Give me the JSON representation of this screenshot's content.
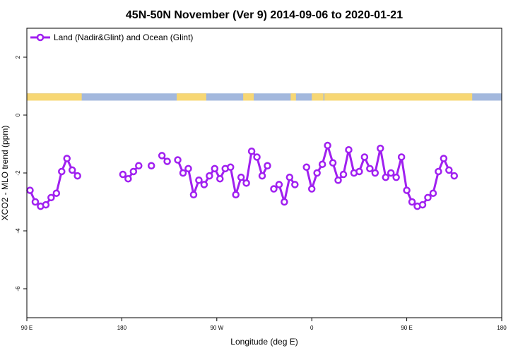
{
  "chart_data": {
    "type": "line",
    "title": "45N-50N November (Ver 9)   2014-09-06 to 2020-01-21",
    "xlabel": "Longitude (deg E)",
    "ylabel": "XCO2 - MLO trend (ppm)",
    "xlim": [
      90,
      540
    ],
    "ylim": [
      -7,
      3
    ],
    "x_ticks": [
      {
        "value": 90,
        "label": "90 E"
      },
      {
        "value": 180,
        "label": "180"
      },
      {
        "value": 270,
        "label": "90 W"
      },
      {
        "value": 360,
        "label": "0"
      },
      {
        "value": 450,
        "label": "90 E"
      },
      {
        "value": 540,
        "label": "180"
      }
    ],
    "y_ticks": [
      {
        "value": 2,
        "label": "2"
      },
      {
        "value": 0,
        "label": "0"
      },
      {
        "value": -2,
        "label": "-2"
      },
      {
        "value": -4,
        "label": "-4"
      },
      {
        "value": -6,
        "label": "-6"
      }
    ],
    "legend_position": "top-left",
    "land_ocean_strip": {
      "y_range": [
        0.5,
        0.75
      ],
      "land_color": "#f7d774",
      "ocean_color": "#a3b8dd",
      "land_segments": [
        [
          90,
          142
        ],
        [
          232,
          260
        ],
        [
          295,
          305
        ],
        [
          340,
          345
        ],
        [
          360,
          371
        ],
        [
          372,
          512
        ]
      ]
    },
    "series": [
      {
        "name": "Land (Nadir&Glint) and Ocean (Glint)",
        "color": "#a020f0",
        "segments": [
          [
            {
              "x": 93,
              "y": -2.6
            },
            {
              "x": 98,
              "y": -3.0
            },
            {
              "x": 103,
              "y": -3.15
            },
            {
              "x": 108,
              "y": -3.1
            },
            {
              "x": 113,
              "y": -2.85
            },
            {
              "x": 118,
              "y": -2.7
            },
            {
              "x": 123,
              "y": -1.95
            },
            {
              "x": 128,
              "y": -1.5
            },
            {
              "x": 133,
              "y": -1.9
            },
            {
              "x": 138,
              "y": -2.1
            }
          ],
          [
            {
              "x": 181,
              "y": -2.05
            },
            {
              "x": 186,
              "y": -2.2
            },
            {
              "x": 191,
              "y": -1.95
            },
            {
              "x": 196,
              "y": -1.75
            }
          ],
          [
            {
              "x": 208,
              "y": -1.75
            }
          ],
          [
            {
              "x": 218,
              "y": -1.4
            },
            {
              "x": 223,
              "y": -1.6
            }
          ],
          [
            {
              "x": 233,
              "y": -1.55
            },
            {
              "x": 238,
              "y": -2.0
            },
            {
              "x": 243,
              "y": -1.85
            },
            {
              "x": 248,
              "y": -2.75
            },
            {
              "x": 253,
              "y": -2.25
            },
            {
              "x": 258,
              "y": -2.4
            },
            {
              "x": 263,
              "y": -2.1
            },
            {
              "x": 268,
              "y": -1.85
            },
            {
              "x": 273,
              "y": -2.2
            },
            {
              "x": 278,
              "y": -1.85
            },
            {
              "x": 283,
              "y": -1.8
            },
            {
              "x": 288,
              "y": -2.75
            },
            {
              "x": 293,
              "y": -2.15
            },
            {
              "x": 298,
              "y": -2.35
            },
            {
              "x": 303,
              "y": -1.25
            },
            {
              "x": 308,
              "y": -1.45
            },
            {
              "x": 313,
              "y": -2.1
            },
            {
              "x": 318,
              "y": -1.75
            }
          ],
          [
            {
              "x": 324,
              "y": -2.55
            },
            {
              "x": 329,
              "y": -2.4
            },
            {
              "x": 334,
              "y": -3.0
            },
            {
              "x": 339,
              "y": -2.15
            },
            {
              "x": 344,
              "y": -2.4
            }
          ],
          [
            {
              "x": 355,
              "y": -1.8
            },
            {
              "x": 360,
              "y": -2.55
            },
            {
              "x": 365,
              "y": -2.0
            },
            {
              "x": 370,
              "y": -1.7
            },
            {
              "x": 375,
              "y": -1.05
            },
            {
              "x": 380,
              "y": -1.65
            },
            {
              "x": 385,
              "y": -2.25
            },
            {
              "x": 390,
              "y": -2.05
            },
            {
              "x": 395,
              "y": -1.2
            },
            {
              "x": 400,
              "y": -2.0
            },
            {
              "x": 405,
              "y": -1.95
            },
            {
              "x": 410,
              "y": -1.45
            },
            {
              "x": 415,
              "y": -1.85
            },
            {
              "x": 420,
              "y": -2.0
            },
            {
              "x": 425,
              "y": -1.15
            },
            {
              "x": 430,
              "y": -2.15
            },
            {
              "x": 435,
              "y": -2.0
            },
            {
              "x": 440,
              "y": -2.15
            },
            {
              "x": 445,
              "y": -1.45
            },
            {
              "x": 450,
              "y": -2.6
            },
            {
              "x": 455,
              "y": -3.0
            },
            {
              "x": 460,
              "y": -3.15
            },
            {
              "x": 465,
              "y": -3.1
            },
            {
              "x": 470,
              "y": -2.85
            },
            {
              "x": 475,
              "y": -2.7
            },
            {
              "x": 480,
              "y": -1.95
            },
            {
              "x": 485,
              "y": -1.5
            },
            {
              "x": 490,
              "y": -1.9
            },
            {
              "x": 495,
              "y": -2.1
            }
          ]
        ]
      }
    ]
  }
}
